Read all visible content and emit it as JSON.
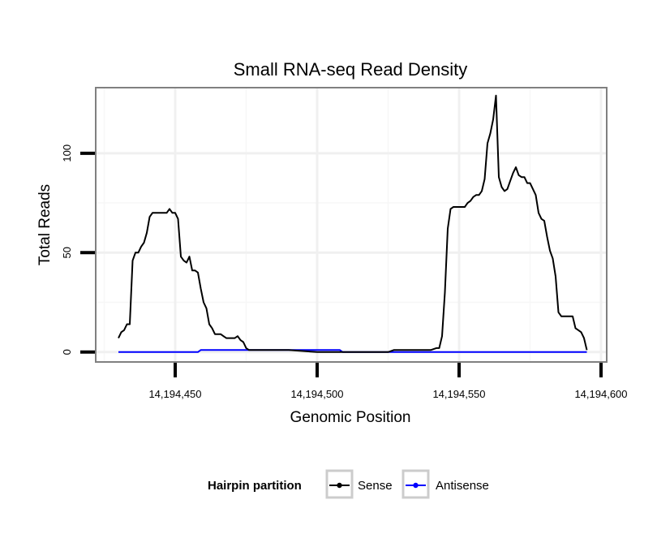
{
  "chart_data": {
    "type": "line",
    "title": "Small RNA-seq Read Density",
    "xlabel": "Genomic Position",
    "ylabel": "Total Reads",
    "xlim": [
      14194422,
      14194602
    ],
    "ylim": [
      -5,
      133
    ],
    "xticks": [
      14194450,
      14194500,
      14194550,
      14194600
    ],
    "xtick_labels": [
      "14,194,450",
      "14,194,500",
      "14,194,550",
      "14,194,600"
    ],
    "yticks": [
      0,
      50,
      100
    ],
    "ytick_labels": [
      "0",
      "50",
      "100"
    ],
    "grid": true,
    "legend": {
      "title": "Hairpin partition",
      "position": "bottom"
    },
    "series": [
      {
        "name": "Sense",
        "color": "#000000",
        "points": [
          [
            14194430,
            7
          ],
          [
            14194431,
            10
          ],
          [
            14194432,
            11
          ],
          [
            14194433,
            14
          ],
          [
            14194434,
            14
          ],
          [
            14194435,
            46
          ],
          [
            14194436,
            50
          ],
          [
            14194437,
            50
          ],
          [
            14194438,
            53
          ],
          [
            14194439,
            55
          ],
          [
            14194440,
            60
          ],
          [
            14194441,
            68
          ],
          [
            14194442,
            70
          ],
          [
            14194443,
            70
          ],
          [
            14194444,
            70
          ],
          [
            14194445,
            70
          ],
          [
            14194446,
            70
          ],
          [
            14194447,
            70
          ],
          [
            14194448,
            72
          ],
          [
            14194449,
            70
          ],
          [
            14194450,
            70
          ],
          [
            14194451,
            67
          ],
          [
            14194452,
            48
          ],
          [
            14194453,
            46
          ],
          [
            14194454,
            45
          ],
          [
            14194455,
            48
          ],
          [
            14194456,
            41
          ],
          [
            14194457,
            41
          ],
          [
            14194458,
            40
          ],
          [
            14194459,
            32
          ],
          [
            14194460,
            25
          ],
          [
            14194461,
            22
          ],
          [
            14194462,
            14
          ],
          [
            14194463,
            12
          ],
          [
            14194464,
            9
          ],
          [
            14194465,
            9
          ],
          [
            14194466,
            9
          ],
          [
            14194467,
            8
          ],
          [
            14194468,
            7
          ],
          [
            14194469,
            7
          ],
          [
            14194470,
            7
          ],
          [
            14194471,
            7
          ],
          [
            14194472,
            8
          ],
          [
            14194473,
            6
          ],
          [
            14194474,
            5
          ],
          [
            14194475,
            2
          ],
          [
            14194476,
            1
          ],
          [
            14194477,
            1
          ],
          [
            14194478,
            1
          ],
          [
            14194479,
            1
          ],
          [
            14194480,
            1
          ],
          [
            14194490,
            1
          ],
          [
            14194500,
            0
          ],
          [
            14194510,
            0
          ],
          [
            14194520,
            0
          ],
          [
            14194525,
            0
          ],
          [
            14194527,
            1
          ],
          [
            14194530,
            1
          ],
          [
            14194535,
            1
          ],
          [
            14194540,
            1
          ],
          [
            14194542,
            2
          ],
          [
            14194543,
            2
          ],
          [
            14194544,
            8
          ],
          [
            14194545,
            30
          ],
          [
            14194546,
            62
          ],
          [
            14194547,
            72
          ],
          [
            14194548,
            73
          ],
          [
            14194549,
            73
          ],
          [
            14194550,
            73
          ],
          [
            14194551,
            73
          ],
          [
            14194552,
            73
          ],
          [
            14194553,
            75
          ],
          [
            14194554,
            76
          ],
          [
            14194555,
            78
          ],
          [
            14194556,
            79
          ],
          [
            14194557,
            79
          ],
          [
            14194558,
            81
          ],
          [
            14194559,
            87
          ],
          [
            14194560,
            105
          ],
          [
            14194561,
            110
          ],
          [
            14194562,
            117
          ],
          [
            14194563,
            129
          ],
          [
            14194564,
            88
          ],
          [
            14194565,
            83
          ],
          [
            14194566,
            81
          ],
          [
            14194567,
            82
          ],
          [
            14194568,
            86
          ],
          [
            14194569,
            90
          ],
          [
            14194570,
            93
          ],
          [
            14194571,
            89
          ],
          [
            14194572,
            88
          ],
          [
            14194573,
            88
          ],
          [
            14194574,
            85
          ],
          [
            14194575,
            85
          ],
          [
            14194576,
            82
          ],
          [
            14194577,
            79
          ],
          [
            14194578,
            70
          ],
          [
            14194579,
            67
          ],
          [
            14194580,
            66
          ],
          [
            14194581,
            58
          ],
          [
            14194582,
            51
          ],
          [
            14194583,
            47
          ],
          [
            14194584,
            38
          ],
          [
            14194585,
            20
          ],
          [
            14194586,
            18
          ],
          [
            14194587,
            18
          ],
          [
            14194588,
            18
          ],
          [
            14194589,
            18
          ],
          [
            14194590,
            18
          ],
          [
            14194591,
            12
          ],
          [
            14194592,
            11
          ],
          [
            14194593,
            10
          ],
          [
            14194594,
            7
          ],
          [
            14194595,
            1
          ]
        ]
      },
      {
        "name": "Antisense",
        "color": "#0000ff",
        "points": [
          [
            14194430,
            0
          ],
          [
            14194440,
            0
          ],
          [
            14194450,
            0
          ],
          [
            14194458,
            0
          ],
          [
            14194459,
            1
          ],
          [
            14194465,
            1
          ],
          [
            14194470,
            1
          ],
          [
            14194475,
            1
          ],
          [
            14194480,
            1
          ],
          [
            14194490,
            1
          ],
          [
            14194500,
            1
          ],
          [
            14194507,
            1
          ],
          [
            14194508,
            1
          ],
          [
            14194509,
            0
          ],
          [
            14194520,
            0
          ],
          [
            14194540,
            0
          ],
          [
            14194560,
            0
          ],
          [
            14194580,
            0
          ],
          [
            14194595,
            0
          ]
        ]
      }
    ]
  },
  "colors": {
    "panel_border": "#808080",
    "grid_major": "#f0f0f0",
    "grid_minor": "#f7f7f7",
    "legend_key_border": "#cccccc"
  }
}
